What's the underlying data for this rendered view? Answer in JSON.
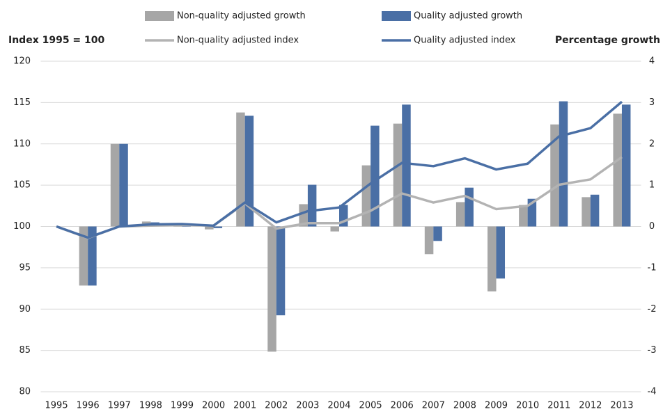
{
  "chart_data": {
    "type": "combo",
    "ylabel": "Index 1995 = 100",
    "y2label": "Percentage growth",
    "categories": [
      "1995",
      "1996",
      "1997",
      "1998",
      "1999",
      "2000",
      "2001",
      "2002",
      "2003",
      "2004",
      "2005",
      "2006",
      "2007",
      "2008",
      "2009",
      "2010",
      "2011",
      "2012",
      "2013"
    ],
    "ylim": [
      80,
      120
    ],
    "yticks": [
      80,
      85,
      90,
      95,
      100,
      105,
      110,
      115,
      120
    ],
    "y2lim": [
      -4,
      4
    ],
    "y2ticks": [
      -4,
      -3,
      -2,
      -1,
      0,
      1,
      2,
      3,
      4
    ],
    "grid": true,
    "series": [
      {
        "name": "Non-quality adjusted growth",
        "type": "bar",
        "axis": "y2",
        "color": "#a6a6a6",
        "values": [
          null,
          -1.43,
          2.0,
          0.12,
          0.05,
          -0.07,
          2.76,
          -3.03,
          0.54,
          -0.12,
          1.48,
          2.49,
          -0.67,
          0.59,
          -1.57,
          0.52,
          2.47,
          0.71,
          2.73
        ]
      },
      {
        "name": "Quality adjusted growth",
        "type": "bar",
        "axis": "y2",
        "color": "#4a6fa5",
        "values": [
          null,
          -1.43,
          2.0,
          0.1,
          0.05,
          -0.04,
          2.68,
          -2.15,
          1.01,
          0.52,
          2.44,
          2.95,
          -0.35,
          0.94,
          -1.26,
          0.67,
          3.03,
          0.77,
          2.95
        ]
      },
      {
        "name": "Non-quality adjusted index",
        "type": "line",
        "axis": "y",
        "color": "#b3b3b3",
        "values": [
          100,
          98.6,
          100,
          100.1,
          100.2,
          100.1,
          102.8,
          99.75,
          100.4,
          100.4,
          101.9,
          104.0,
          102.9,
          103.7,
          102.1,
          102.5,
          105.05,
          105.7,
          108.4
        ]
      },
      {
        "name": "Quality adjusted index",
        "type": "line",
        "axis": "y",
        "color": "#4a6fa5",
        "values": [
          100,
          98.65,
          100,
          100.25,
          100.3,
          100.1,
          102.9,
          100.5,
          101.85,
          102.3,
          105.2,
          107.7,
          107.3,
          108.25,
          106.9,
          107.6,
          110.9,
          111.9,
          115.1
        ]
      }
    ]
  }
}
